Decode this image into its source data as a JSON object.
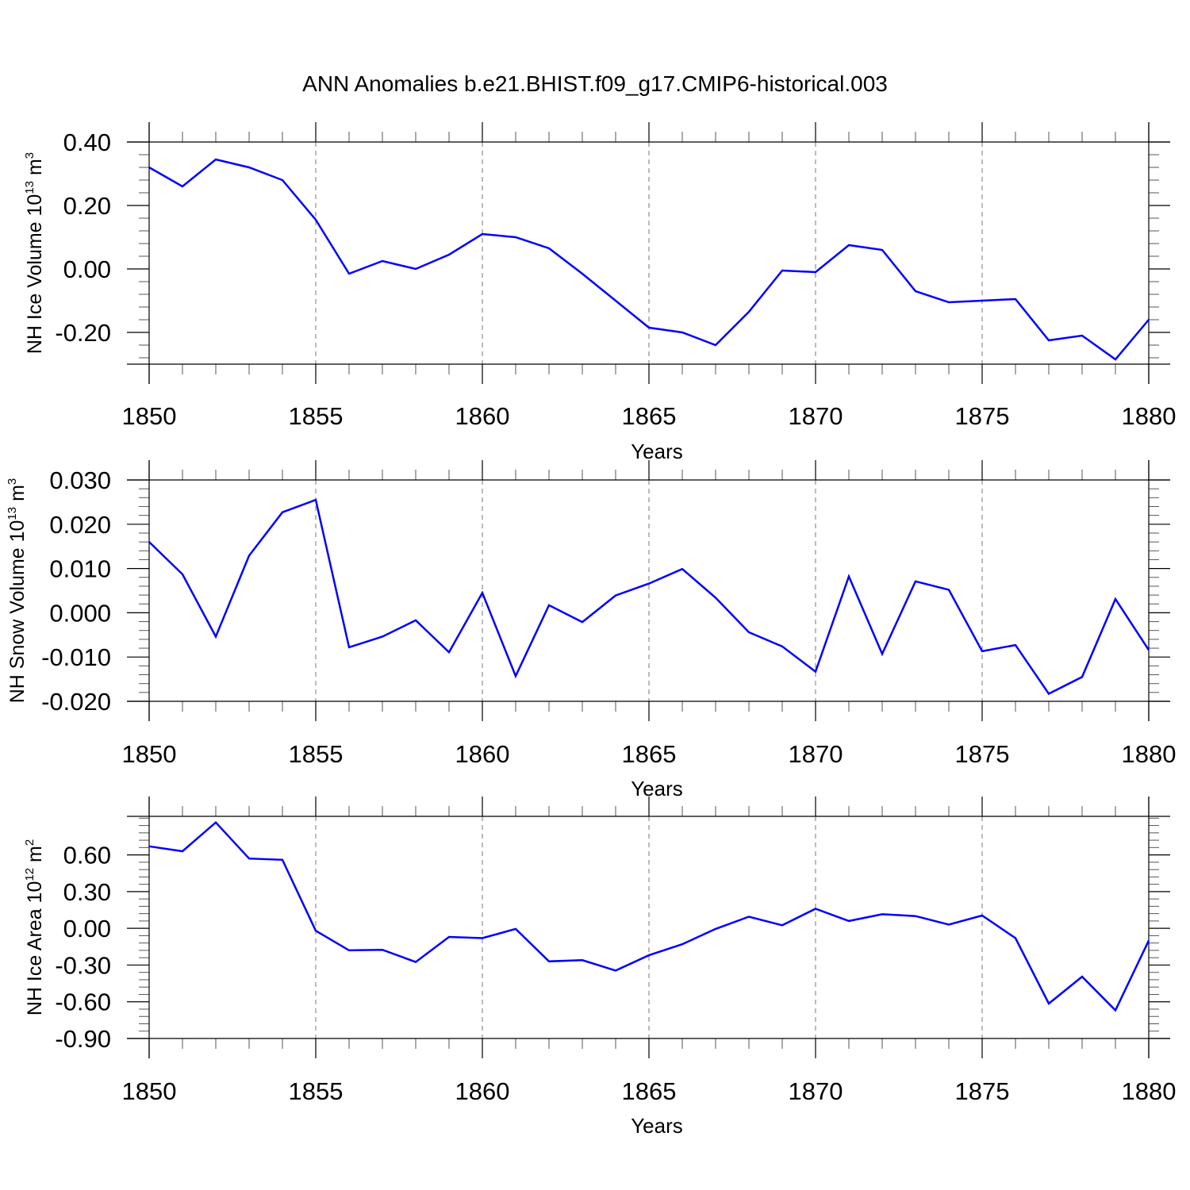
{
  "chart_data": {
    "title": "ANN Anomalies b.e21.BHIST.f09_g17.CMIP6-historical.003",
    "panels": [
      {
        "type": "line",
        "xlabel": "Years",
        "ylabel": {
          "main": "NH Ice Volume 10",
          "exp": "13",
          "unit": " m",
          "unit_exp": "3"
        },
        "xlim": [
          1850,
          1880
        ],
        "ylim": [
          -0.3,
          0.4
        ],
        "ytick_values": [
          0.4,
          0.2,
          0.0,
          -0.2
        ],
        "ytick_labels": [
          "0.40",
          "0.20",
          "0.00",
          "-0.20"
        ],
        "xtick_values": [
          1850,
          1855,
          1860,
          1865,
          1870,
          1875,
          1880
        ],
        "xtick_labels": [
          "1850",
          "1855",
          "1860",
          "1865",
          "1870",
          "1875",
          "1880"
        ],
        "minor_y_step": 0.04,
        "x": [
          1850,
          1851,
          1852,
          1853,
          1854,
          1855,
          1856,
          1857,
          1858,
          1859,
          1860,
          1861,
          1862,
          1863,
          1864,
          1865,
          1866,
          1867,
          1868,
          1869,
          1870,
          1871,
          1872,
          1873,
          1874,
          1875,
          1876,
          1877,
          1878,
          1879,
          1880
        ],
        "y": [
          0.32,
          0.26,
          0.345,
          0.32,
          0.28,
          0.155,
          -0.015,
          0.025,
          0.0,
          0.045,
          0.11,
          0.1,
          0.065,
          -0.015,
          -0.1,
          -0.185,
          -0.2,
          -0.24,
          -0.135,
          -0.005,
          -0.01,
          0.075,
          0.06,
          -0.07,
          -0.105,
          -0.1,
          -0.095,
          -0.225,
          -0.21,
          -0.285,
          -0.16
        ],
        "color": "#0000ff"
      },
      {
        "type": "line",
        "xlabel": "Years",
        "ylabel": {
          "main": "NH Snow Volume 10",
          "exp": "13",
          "unit": " m",
          "unit_exp": "3"
        },
        "xlim": [
          1850,
          1880
        ],
        "ylim": [
          -0.02,
          0.03
        ],
        "ytick_values": [
          0.03,
          0.02,
          0.01,
          0.0,
          -0.01,
          -0.02
        ],
        "ytick_labels": [
          "0.030",
          "0.020",
          "0.010",
          "0.000",
          "-0.010",
          "-0.020"
        ],
        "xtick_values": [
          1850,
          1855,
          1860,
          1865,
          1870,
          1875,
          1880
        ],
        "xtick_labels": [
          "1850",
          "1855",
          "1860",
          "1865",
          "1870",
          "1875",
          "1880"
        ],
        "minor_y_step": 0.002,
        "x": [
          1850,
          1851,
          1852,
          1853,
          1854,
          1855,
          1856,
          1857,
          1858,
          1859,
          1860,
          1861,
          1862,
          1863,
          1864,
          1865,
          1866,
          1867,
          1868,
          1869,
          1870,
          1871,
          1872,
          1873,
          1874,
          1875,
          1876,
          1877,
          1878,
          1879,
          1880
        ],
        "y": [
          0.016,
          0.0087,
          -0.0054,
          0.0129,
          0.0227,
          0.0255,
          -0.0078,
          -0.0054,
          -0.0017,
          -0.0089,
          0.0045,
          -0.0143,
          0.0017,
          -0.0021,
          0.0039,
          0.0066,
          0.0099,
          0.0034,
          -0.0044,
          -0.0076,
          -0.0133,
          0.0082,
          -0.0093,
          0.0071,
          0.0052,
          -0.0087,
          -0.0073,
          -0.0183,
          -0.0145,
          0.0031,
          -0.0084
        ],
        "color": "#0000ff"
      },
      {
        "type": "line",
        "xlabel": "Years",
        "ylabel": {
          "main": "NH Ice Area 10",
          "exp": "12",
          "unit": " m",
          "unit_exp": "2"
        },
        "xlim": [
          1850,
          1880
        ],
        "ylim": [
          -0.9,
          0.915
        ],
        "ytick_values": [
          0.6,
          0.3,
          0.0,
          -0.3,
          -0.6,
          -0.9
        ],
        "ytick_labels": [
          "0.60",
          "0.30",
          "0.00",
          "-0.30",
          "-0.60",
          "-0.90"
        ],
        "xtick_values": [
          1850,
          1855,
          1860,
          1865,
          1870,
          1875,
          1880
        ],
        "xtick_labels": [
          "1850",
          "1855",
          "1860",
          "1865",
          "1870",
          "1875",
          "1880"
        ],
        "minor_y_step": 0.06,
        "x": [
          1850,
          1851,
          1852,
          1853,
          1854,
          1855,
          1856,
          1857,
          1858,
          1859,
          1860,
          1861,
          1862,
          1863,
          1864,
          1865,
          1866,
          1867,
          1868,
          1869,
          1870,
          1871,
          1872,
          1873,
          1874,
          1875,
          1876,
          1877,
          1878,
          1879,
          1880
        ],
        "y": [
          0.67,
          0.63,
          0.865,
          0.57,
          0.56,
          -0.02,
          -0.18,
          -0.175,
          -0.275,
          -0.07,
          -0.08,
          -0.005,
          -0.27,
          -0.26,
          -0.345,
          -0.22,
          -0.13,
          -0.005,
          0.095,
          0.025,
          0.16,
          0.06,
          0.115,
          0.1,
          0.03,
          0.105,
          -0.08,
          -0.615,
          -0.395,
          -0.67,
          -0.1
        ],
        "color": "#0000ff"
      }
    ]
  }
}
